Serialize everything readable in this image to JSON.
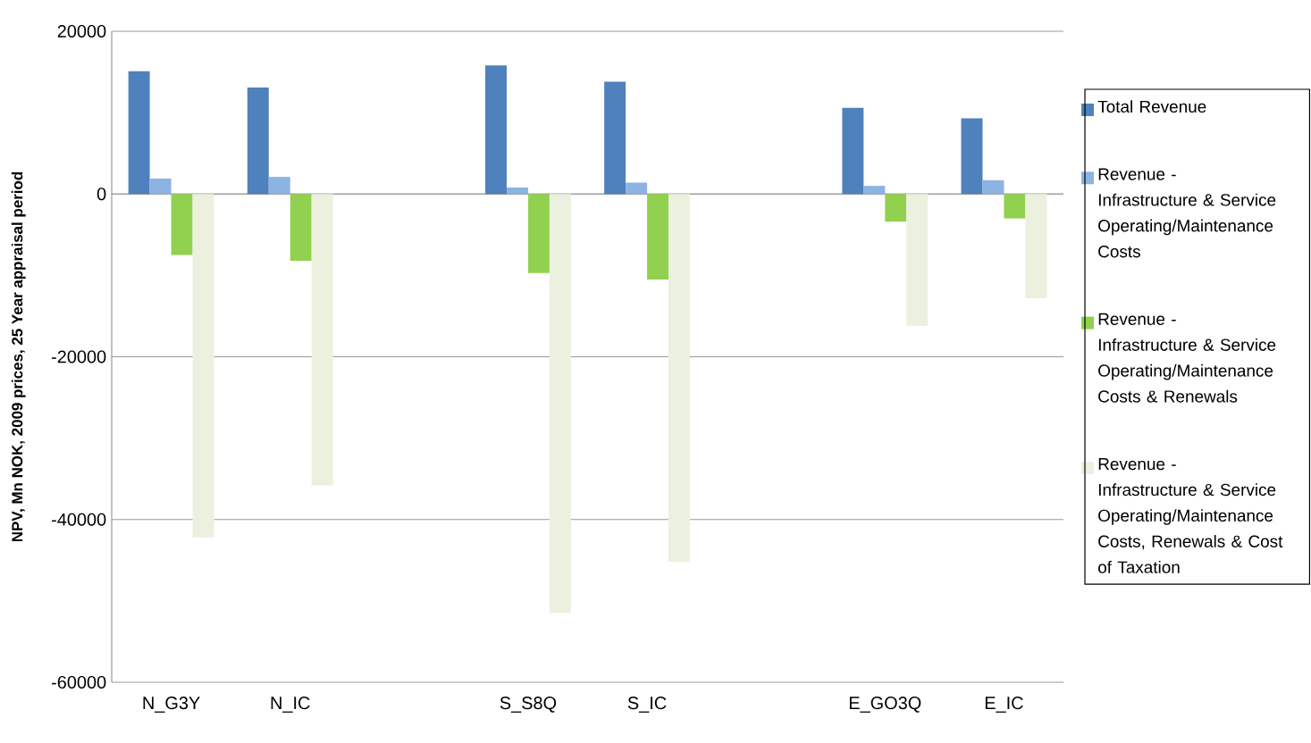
{
  "chart_data": {
    "type": "bar",
    "ylabel": "NPV, Mn NOK, 2009 prices, 25 Year appraisal  period",
    "categories": [
      "N_G3Y",
      "N_IC",
      null,
      "S_S8Q",
      "S_IC",
      null,
      "E_GO3Q",
      "E_IC"
    ],
    "series": [
      {
        "name": "Total Revenue",
        "color": "#4f81bd",
        "values": [
          15100,
          13100,
          null,
          15800,
          13800,
          null,
          10600,
          9300
        ]
      },
      {
        "name": "Revenue - Infrastructure & Service Operating/Maintenance Costs",
        "color": "#8db3e2",
        "values": [
          1900,
          2100,
          null,
          800,
          1400,
          null,
          1000,
          1700
        ]
      },
      {
        "name": "Revenue - Infrastructure & Service Operating/Maintenance Costs & Renewals",
        "color": "#92d050",
        "values": [
          -7500,
          -8200,
          null,
          -9700,
          -10500,
          null,
          -3400,
          -3000
        ]
      },
      {
        "name": "Revenue - Infrastructure & Service Operating/Maintenance Costs, Renewals & Cost of Taxation",
        "color": "#ebf1de",
        "values": [
          -42200,
          -35800,
          null,
          -51500,
          -45200,
          null,
          -16200,
          -12800
        ]
      }
    ],
    "ylim": [
      -60000,
      20000
    ],
    "yticks": [
      -60000,
      -40000,
      -20000,
      0,
      20000
    ],
    "grid": "y",
    "legend": "right"
  }
}
